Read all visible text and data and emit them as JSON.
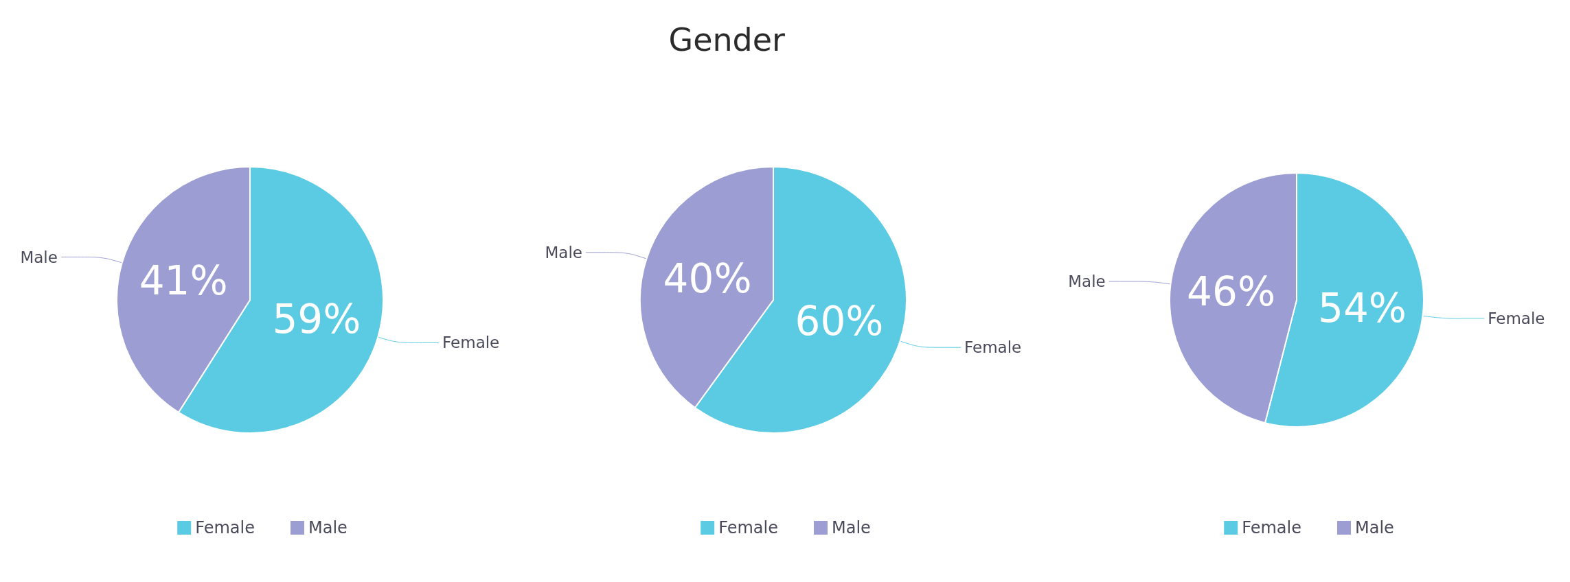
{
  "chart_data": [
    {
      "type": "pie",
      "categories": [
        "Female",
        "Male"
      ],
      "values": [
        59,
        41
      ],
      "value_labels": [
        "59%",
        "41%"
      ],
      "colors": [
        "#5bcbe3",
        "#9b9dd3"
      ],
      "legend": "bottom"
    },
    {
      "type": "pie",
      "title": "Gender",
      "categories": [
        "Female",
        "Male"
      ],
      "values": [
        60,
        40
      ],
      "value_labels": [
        "60%",
        "40%"
      ],
      "colors": [
        "#5bcbe3",
        "#9b9dd3"
      ],
      "legend": "bottom"
    },
    {
      "type": "pie",
      "categories": [
        "Female",
        "Male"
      ],
      "values": [
        54,
        46
      ],
      "value_labels": [
        "54%",
        "46%"
      ],
      "colors": [
        "#5bcbe3",
        "#9b9dd3"
      ],
      "legend": "bottom"
    }
  ]
}
